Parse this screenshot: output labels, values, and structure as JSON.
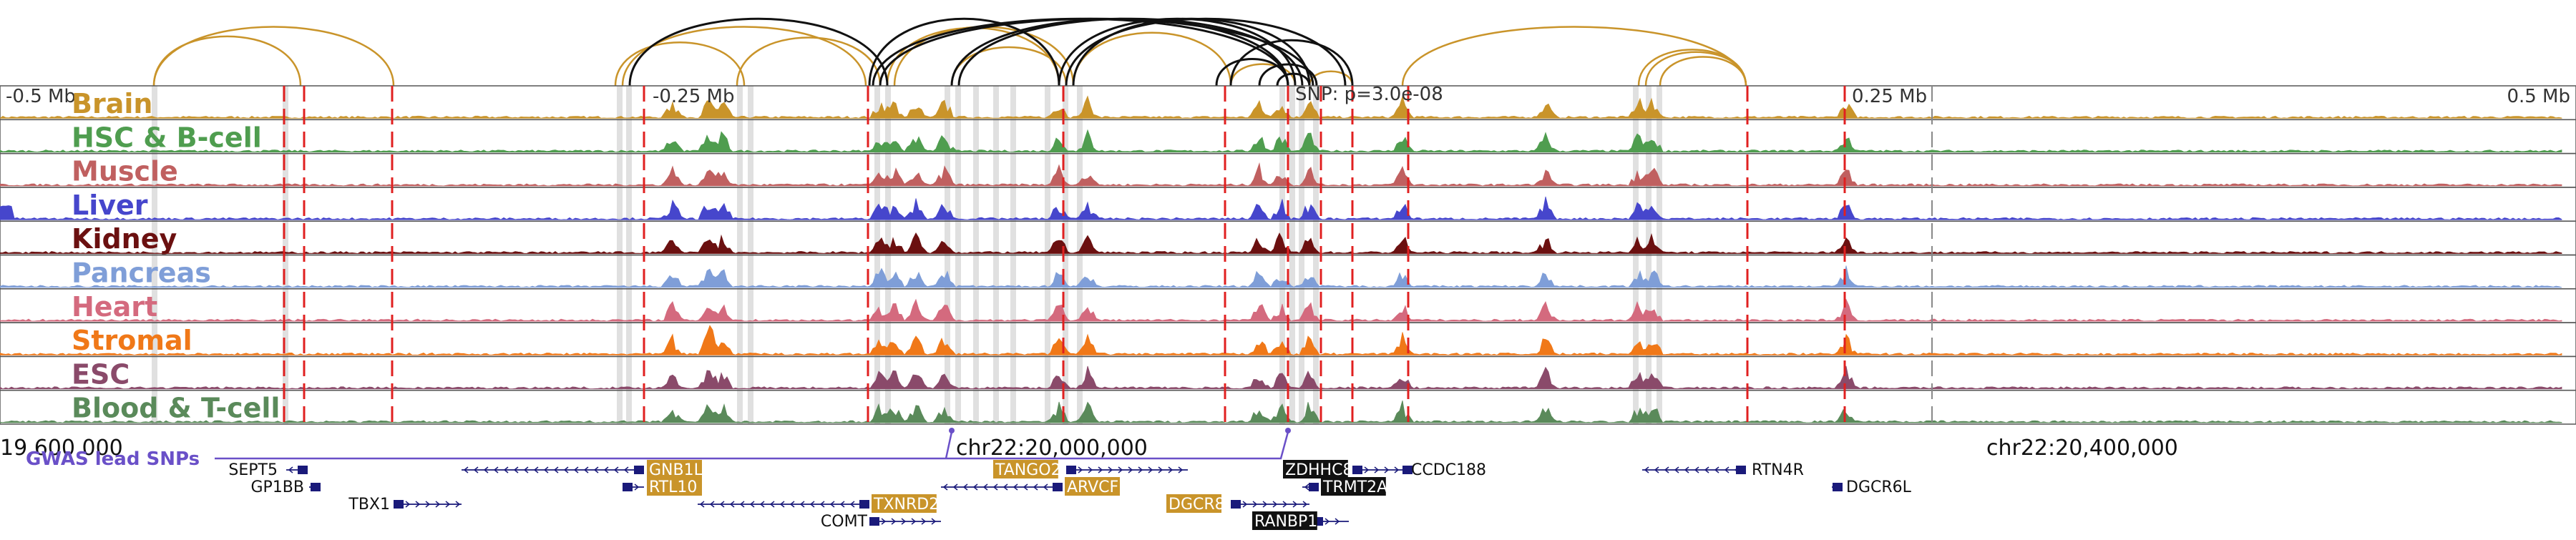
{
  "browser": {
    "ruler": {
      "left_label": "-0.5 Mb",
      "mid_left_label": "-0.25 Mb",
      "snp_label": "SNP: p=3.0e-08",
      "mid_right_label": "0.25 Mb",
      "right_label": "0.5 Mb"
    },
    "tracks": [
      {
        "name": "Brain",
        "color": "#c9942a"
      },
      {
        "name": "HSC & B-cell",
        "color": "#4f9d4f"
      },
      {
        "name": "Muscle",
        "color": "#c06060"
      },
      {
        "name": "Liver",
        "color": "#4646cc"
      },
      {
        "name": "Kidney",
        "color": "#6b1010"
      },
      {
        "name": "Pancreas",
        "color": "#7f9ed8"
      },
      {
        "name": "Heart",
        "color": "#d46a7e"
      },
      {
        "name": "Stromal",
        "color": "#f07818"
      },
      {
        "name": "ESC",
        "color": "#8a4a6a"
      },
      {
        "name": "Blood & T-cell",
        "color": "#5a8a5a"
      }
    ],
    "coordinates": {
      "left": "19,600,000",
      "center": "chr22:20,000,000",
      "right": "chr22:20,400,000"
    },
    "gwas_label": "GWAS lead SNPs",
    "gwas_color": "#6a50c8",
    "genes": [
      {
        "name": "SEPT5",
        "highlight": false
      },
      {
        "name": "GP1BB",
        "highlight": false
      },
      {
        "name": "TBX1",
        "highlight": false
      },
      {
        "name": "GNB1L",
        "highlight": true,
        "style": "gold"
      },
      {
        "name": "RTL10",
        "highlight": true,
        "style": "gold"
      },
      {
        "name": "TXNRD2",
        "highlight": true,
        "style": "gold"
      },
      {
        "name": "COMT",
        "highlight": false
      },
      {
        "name": "TANGO2",
        "highlight": true,
        "style": "gold"
      },
      {
        "name": "ARVCF",
        "highlight": true,
        "style": "gold"
      },
      {
        "name": "DGCR8",
        "highlight": true,
        "style": "gold"
      },
      {
        "name": "ZDHHC8",
        "highlight": true,
        "style": "black"
      },
      {
        "name": "TRMT2A",
        "highlight": true,
        "style": "black"
      },
      {
        "name": "RANBP1",
        "highlight": true,
        "style": "black"
      },
      {
        "name": "CCDC188",
        "highlight": false
      },
      {
        "name": "RTN4R",
        "highlight": false
      },
      {
        "name": "DGCR6L",
        "highlight": false
      }
    ],
    "colors": {
      "snp_line": "#e02020",
      "gold_box": "#c9942a",
      "black_box": "#111111",
      "gene_line": "#1a1a7a"
    }
  }
}
